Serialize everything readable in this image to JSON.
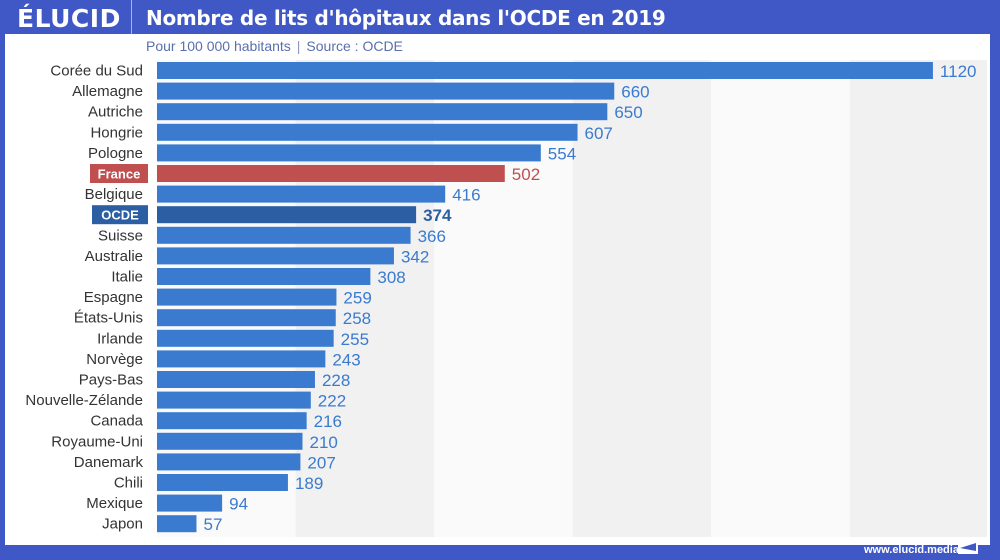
{
  "header": {
    "logo": "ÉLUCID",
    "title": "Nombre de lits d'hôpitaux dans l'OCDE en 2019",
    "subtitle_left": "Pour 100 000 habitants",
    "subtitle_sep": "|",
    "subtitle_right": "Source : OCDE"
  },
  "footer": {
    "url": "www.elucid.media"
  },
  "colors": {
    "frame": "#3f58c6",
    "bar_default": "#3a7bcf",
    "bar_france": "#c05050",
    "bar_ocde": "#2b5ea3",
    "label_default": "#3a7bcf",
    "label_france": "#c05050",
    "label_ocde": "#2b5ea3",
    "band_grey": "#f1f1f1",
    "band_light": "#fafafa"
  },
  "chart_data": {
    "type": "bar",
    "orientation": "horizontal",
    "title": "Nombre de lits d'hôpitaux dans l'OCDE en 2019",
    "subtitle": "Pour 100 000 habitants | Source : OCDE",
    "xlabel": "",
    "ylabel": "",
    "xlim": [
      0,
      1200
    ],
    "grid": "alternating vertical bands every 200",
    "legend": "none",
    "categories": [
      "Corée du Sud",
      "Allemagne",
      "Autriche",
      "Hongrie",
      "Pologne",
      "France",
      "Belgique",
      "OCDE",
      "Suisse",
      "Australie",
      "Italie",
      "Espagne",
      "États-Unis",
      "Irlande",
      "Norvège",
      "Pays-Bas",
      "Nouvelle-Zélande",
      "Canada",
      "Royaume-Uni",
      "Danemark",
      "Chili",
      "Mexique",
      "Japon"
    ],
    "values": [
      1120,
      660,
      650,
      607,
      554,
      502,
      416,
      374,
      366,
      342,
      308,
      259,
      258,
      255,
      243,
      228,
      222,
      216,
      210,
      207,
      189,
      94,
      57
    ],
    "highlights": {
      "France": "france",
      "OCDE": "ocde"
    }
  }
}
